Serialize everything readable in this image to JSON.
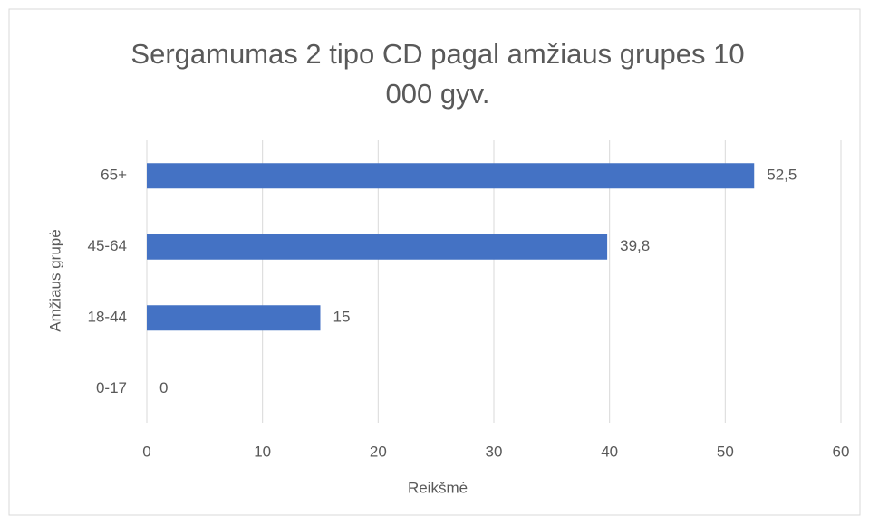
{
  "chart_data": {
    "type": "hbar",
    "title": "Sergamumas 2 tipo CD pagal amžiaus grupes 10 000 gyv.",
    "x_label": "Reikšmė",
    "y_label": "Amžiaus grupė",
    "categories": [
      "0-17",
      "18-44",
      "45-64",
      "65+"
    ],
    "values": [
      0,
      15,
      39.8,
      52.5
    ],
    "value_labels": [
      "0",
      "15",
      "39,8",
      "52,5"
    ],
    "color": "#4472c4",
    "xlim": [
      0,
      60
    ],
    "xticks": [
      0,
      10,
      20,
      30,
      40,
      50,
      60
    ],
    "grid": true
  }
}
